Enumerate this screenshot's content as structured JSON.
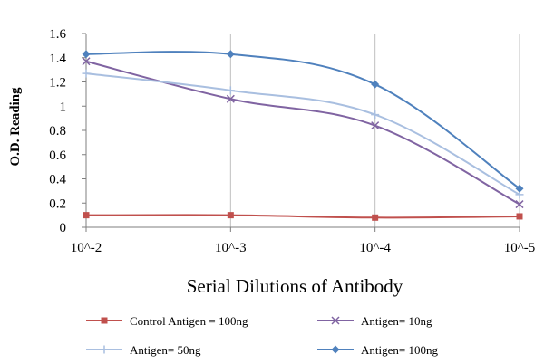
{
  "chart_data": {
    "type": "line",
    "categories": [
      "10^-2",
      "10^-3",
      "10^-4",
      "10^-5"
    ],
    "xlabel": "Serial Dilutions  of Antibody",
    "ylabel": "O.D. Reading",
    "ylim": [
      0,
      1.6
    ],
    "yticks": [
      "0",
      "0.2",
      "0.4",
      "0.6",
      "0.8",
      "1",
      "1.2",
      "1.4",
      "1.6"
    ],
    "grid": "vertical",
    "legend_position": "bottom",
    "series": [
      {
        "name": "Control Antigen = 100ng",
        "values": [
          0.1,
          0.1,
          0.08,
          0.09
        ],
        "color": "#c0504d",
        "marker": "square"
      },
      {
        "name": "Antigen= 10ng",
        "values": [
          1.37,
          1.06,
          0.84,
          0.19
        ],
        "color": "#8064a2",
        "marker": "x"
      },
      {
        "name": "Antigen= 50ng",
        "values": [
          1.27,
          1.13,
          0.93,
          0.27
        ],
        "color": "#a9bfe0",
        "marker": "plus"
      },
      {
        "name": "Antigen= 100ng",
        "values": [
          1.43,
          1.43,
          1.18,
          0.32
        ],
        "color": "#4f81bd",
        "marker": "diamond"
      }
    ]
  }
}
